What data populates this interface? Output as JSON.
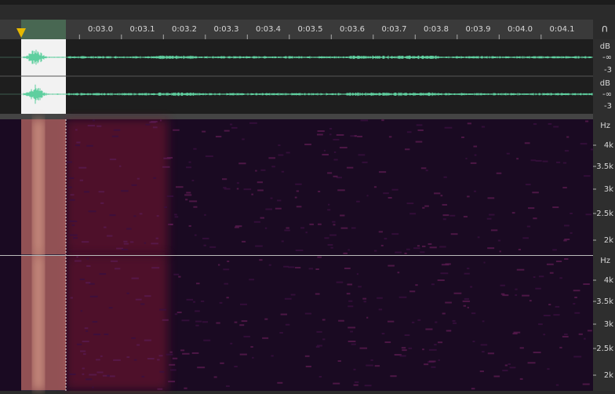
{
  "ruler": {
    "labels": [
      "0:03.0",
      "0:03.1",
      "0:03.2",
      "0:03.3",
      "0:03.4",
      "0:03.5",
      "0:03.6",
      "0:03.7",
      "0:03.8",
      "0:03.9",
      "0:04.0",
      "0:04.1"
    ]
  },
  "waveform": {
    "channels": [
      {
        "unit": "dB",
        "ticks": [
          "-∞",
          "-3"
        ]
      },
      {
        "unit": "dB",
        "ticks": [
          "-∞",
          "-3"
        ]
      }
    ]
  },
  "spectrogram": {
    "channels": [
      {
        "unit": "Hz",
        "ticks": [
          "4k",
          "3.5k",
          "3k",
          "2.5k",
          "2k"
        ]
      },
      {
        "unit": "Hz",
        "ticks": [
          "4k",
          "3.5k",
          "3k",
          "2.5k",
          "2k"
        ]
      }
    ]
  }
}
